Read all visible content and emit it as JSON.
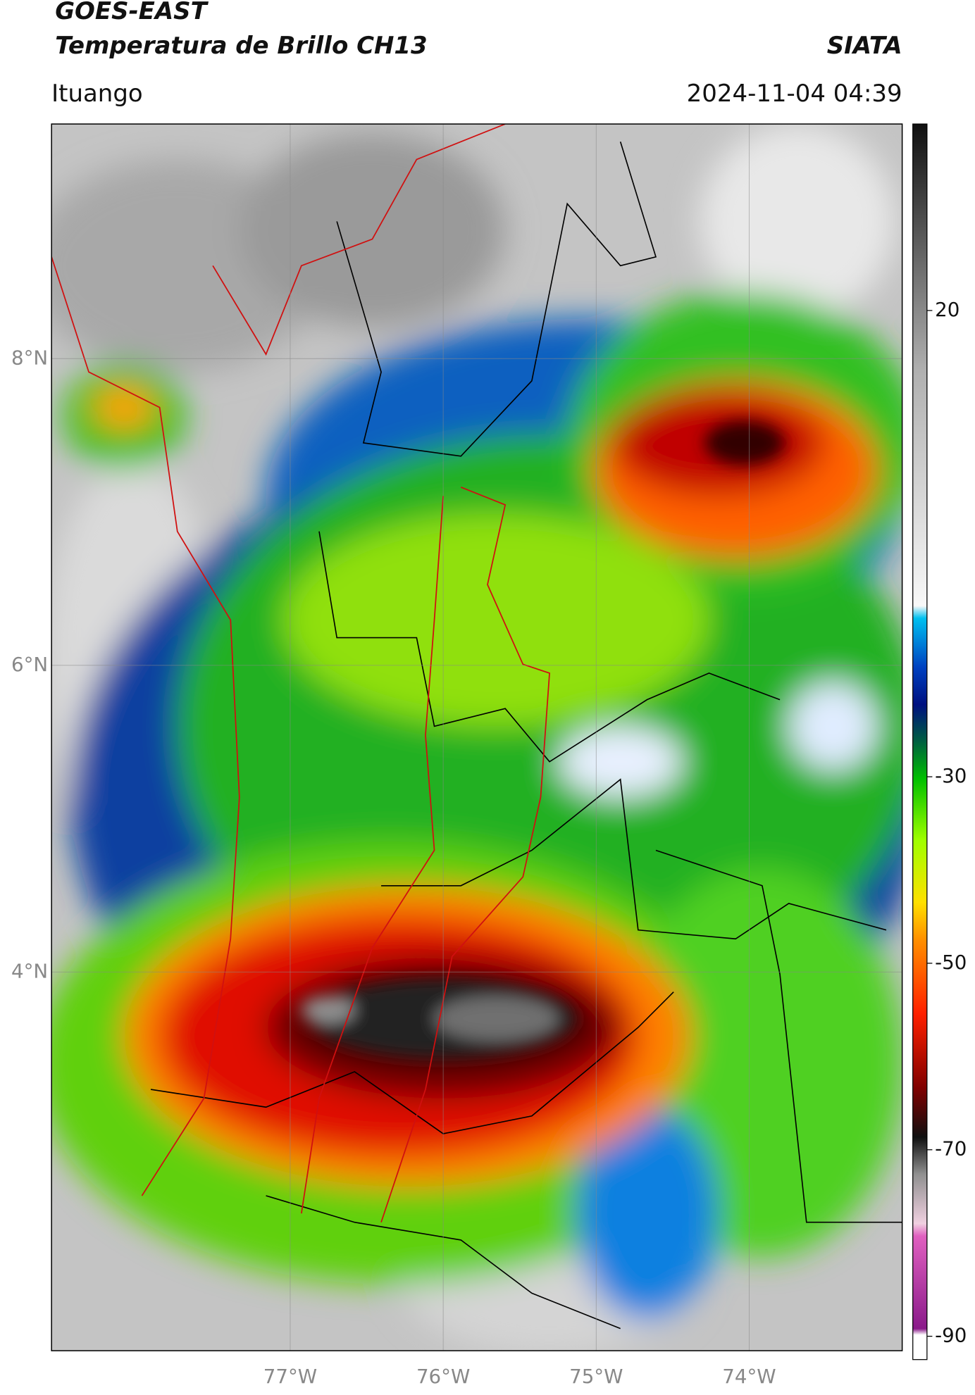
{
  "header": {
    "title": "GOES-EAST",
    "subtitle": "Temperatura de Brillo CH13",
    "source": "SIATA",
    "location": "Ituango",
    "datetime": "2024-11-04 04:39"
  },
  "map": {
    "xlim": [
      -78.56,
      -73.0
    ],
    "ylim": [
      1.53,
      9.53
    ],
    "xticks": [
      {
        "value": -77,
        "label": "77°W"
      },
      {
        "value": -76,
        "label": "76°W"
      },
      {
        "value": -75,
        "label": "75°W"
      },
      {
        "value": -74,
        "label": "74°W"
      }
    ],
    "yticks": [
      {
        "value": 8,
        "label": "8°N"
      },
      {
        "value": 6,
        "label": "6°N"
      },
      {
        "value": 4,
        "label": "4°N"
      }
    ],
    "grid": true
  },
  "colorbar": {
    "lim": [
      -92.5,
      40
    ],
    "ticks": [
      20,
      -30,
      -50,
      -70,
      -90
    ]
  }
}
